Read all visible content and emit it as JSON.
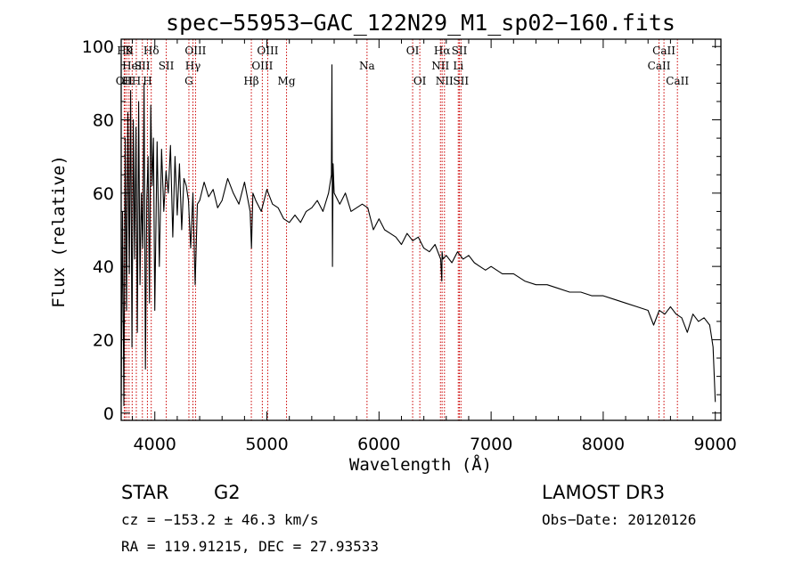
{
  "chart_data": {
    "type": "line",
    "title": "spec−55953−GAC_122N29_M1_sp02−160.fits",
    "xlabel": "Wavelength (Å)",
    "ylabel": "Flux (relative)",
    "xlim": [
      3700,
      9050
    ],
    "ylim": [
      -2,
      102
    ],
    "x_ticks": [
      4000,
      5000,
      6000,
      7000,
      8000,
      9000
    ],
    "y_ticks": [
      0,
      20,
      40,
      60,
      80,
      100
    ],
    "series": [
      {
        "name": "flux",
        "x": [
          3700,
          3712,
          3724,
          3736,
          3748,
          3760,
          3772,
          3784,
          3796,
          3808,
          3820,
          3832,
          3844,
          3856,
          3868,
          3880,
          3892,
          3904,
          3916,
          3928,
          3940,
          3952,
          3964,
          3976,
          3988,
          4000,
          4020,
          4040,
          4060,
          4080,
          4100,
          4120,
          4140,
          4160,
          4180,
          4200,
          4220,
          4240,
          4260,
          4280,
          4300,
          4320,
          4340,
          4360,
          4380,
          4400,
          4440,
          4480,
          4520,
          4560,
          4600,
          4650,
          4700,
          4750,
          4800,
          4850,
          4862,
          4875,
          4900,
          4950,
          5000,
          5050,
          5100,
          5150,
          5200,
          5250,
          5300,
          5350,
          5400,
          5450,
          5500,
          5550,
          5575,
          5580,
          5585,
          5590,
          5600,
          5650,
          5700,
          5750,
          5800,
          5850,
          5900,
          5950,
          6000,
          6050,
          6100,
          6150,
          6200,
          6250,
          6300,
          6350,
          6400,
          6450,
          6500,
          6550,
          6560,
          6563,
          6570,
          6600,
          6650,
          6700,
          6750,
          6800,
          6850,
          6900,
          6950,
          7000,
          7100,
          7200,
          7300,
          7400,
          7500,
          7600,
          7700,
          7800,
          7900,
          8000,
          8100,
          8200,
          8300,
          8400,
          8450,
          8500,
          8550,
          8600,
          8650,
          8700,
          8750,
          8800,
          8850,
          8900,
          8950,
          8960,
          8980,
          9000
        ],
        "values": [
          3,
          55,
          2,
          75,
          28,
          82,
          38,
          88,
          18,
          80,
          42,
          78,
          22,
          85,
          35,
          60,
          45,
          90,
          12,
          58,
          70,
          30,
          84,
          62,
          75,
          28,
          74,
          40,
          72,
          55,
          66,
          60,
          73,
          48,
          70,
          54,
          68,
          50,
          64,
          62,
          58,
          45,
          60,
          35,
          57,
          58,
          63,
          59,
          61,
          56,
          58,
          64,
          60,
          57,
          63,
          55,
          45,
          60,
          58,
          55,
          61,
          57,
          56,
          53,
          52,
          54,
          52,
          55,
          56,
          58,
          55,
          60,
          65,
          95,
          40,
          68,
          60,
          57,
          60,
          55,
          56,
          57,
          56,
          50,
          53,
          50,
          49,
          48,
          46,
          49,
          47,
          48,
          45,
          44,
          46,
          42,
          36,
          44,
          42,
          43,
          41,
          44,
          42,
          43,
          41,
          40,
          39,
          40,
          38,
          38,
          36,
          35,
          35,
          34,
          33,
          33,
          32,
          32,
          31,
          30,
          29,
          28,
          24,
          28,
          27,
          29,
          27,
          26,
          22,
          27,
          25,
          26,
          24,
          22,
          18,
          3
        ]
      }
    ],
    "lines": [
      {
        "x": 3727,
        "label": "OII",
        "row": 2
      },
      {
        "x": 3734,
        "label": "H9",
        "row": 0
      },
      {
        "x": 3750,
        "label": "H",
        "row": 2
      },
      {
        "x": 3770,
        "label": "K",
        "row": 0
      },
      {
        "x": 3798,
        "label": "HeI",
        "row": 1
      },
      {
        "x": 3835,
        "label": "H",
        "row": 2
      },
      {
        "x": 3889,
        "label": "SII",
        "row": 1
      },
      {
        "x": 3934,
        "label": "H",
        "row": 2
      },
      {
        "x": 3968,
        "label": "Hδ",
        "row": 0
      },
      {
        "x": 4102,
        "label": "SII",
        "row": 1
      },
      {
        "x": 4304,
        "label": "G",
        "row": 2
      },
      {
        "x": 4340,
        "label": "Hγ",
        "row": 1
      },
      {
        "x": 4363,
        "label": "OIII",
        "row": 0
      },
      {
        "x": 4861,
        "label": "Hβ",
        "row": 2
      },
      {
        "x": 4959,
        "label": "OIII",
        "row": 1
      },
      {
        "x": 5007,
        "label": "OIII",
        "row": 0
      },
      {
        "x": 5175,
        "label": "Mg",
        "row": 2
      },
      {
        "x": 5893,
        "label": "Na",
        "row": 1
      },
      {
        "x": 6300,
        "label": "OI",
        "row": 0
      },
      {
        "x": 6364,
        "label": "OI",
        "row": 2
      },
      {
        "x": 6548,
        "label": "NII",
        "row": 1
      },
      {
        "x": 6563,
        "label": "Hα",
        "row": 0
      },
      {
        "x": 6584,
        "label": "NII",
        "row": 2
      },
      {
        "x": 6707,
        "label": "Li",
        "row": 1
      },
      {
        "x": 6717,
        "label": "SII",
        "row": 0
      },
      {
        "x": 6731,
        "label": "SII",
        "row": 2
      },
      {
        "x": 8498,
        "label": "CaII",
        "row": 1
      },
      {
        "x": 8542,
        "label": "CaII",
        "row": 0
      },
      {
        "x": 8662,
        "label": "CaII",
        "row": 2
      }
    ]
  },
  "info": {
    "class_label": "STAR",
    "subclass_label": "G2",
    "survey_label": "LAMOST DR3",
    "cz_text": "cz = −153.2 ± 46.3 km/s",
    "obs_date_text": "Obs−Date: 20120126",
    "radec_text": "RA = 119.91215, DEC =  27.93533"
  },
  "colors": {
    "line_marker": "#cc0000",
    "spectrum": "#000000"
  }
}
